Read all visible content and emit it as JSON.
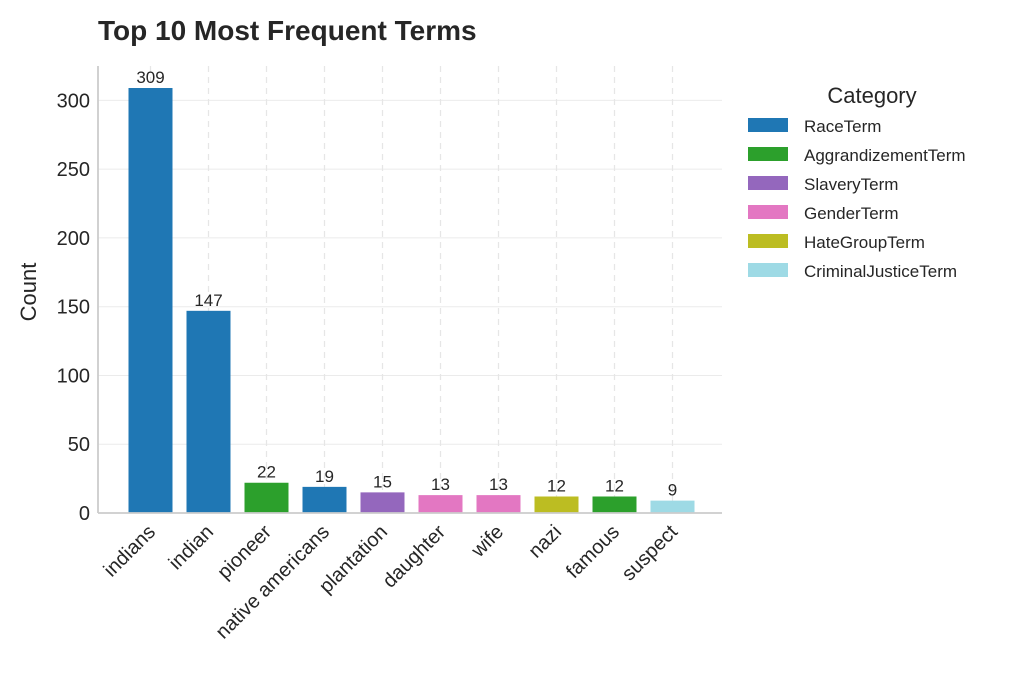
{
  "chart_data": {
    "type": "bar",
    "title": "Top 10 Most Frequent Terms",
    "xlabel": "",
    "ylabel": "Count",
    "ylim": [
      0,
      325
    ],
    "yticks": [
      0,
      50,
      100,
      150,
      200,
      250,
      300
    ],
    "grid": true,
    "legend": {
      "title": "Category",
      "placement": "outside-right",
      "entries": [
        {
          "name": "RaceTerm",
          "color": "#1f77b4"
        },
        {
          "name": "AggrandizementTerm",
          "color": "#2ca02c"
        },
        {
          "name": "SlaveryTerm",
          "color": "#9467bd"
        },
        {
          "name": "GenderTerm",
          "color": "#e377c2"
        },
        {
          "name": "HateGroupTerm",
          "color": "#bcbd22"
        },
        {
          "name": "CriminalJusticeTerm",
          "color": "#9edae5"
        }
      ]
    },
    "categories": [
      "indians",
      "indian",
      "pioneer",
      "native americans",
      "plantation",
      "daughter",
      "wife",
      "nazi",
      "famous",
      "suspect"
    ],
    "values": [
      309,
      147,
      22,
      19,
      15,
      13,
      13,
      12,
      12,
      9
    ],
    "bar_categories": [
      "RaceTerm",
      "RaceTerm",
      "AggrandizementTerm",
      "RaceTerm",
      "SlaveryTerm",
      "GenderTerm",
      "GenderTerm",
      "HateGroupTerm",
      "AggrandizementTerm",
      "CriminalJusticeTerm"
    ]
  }
}
